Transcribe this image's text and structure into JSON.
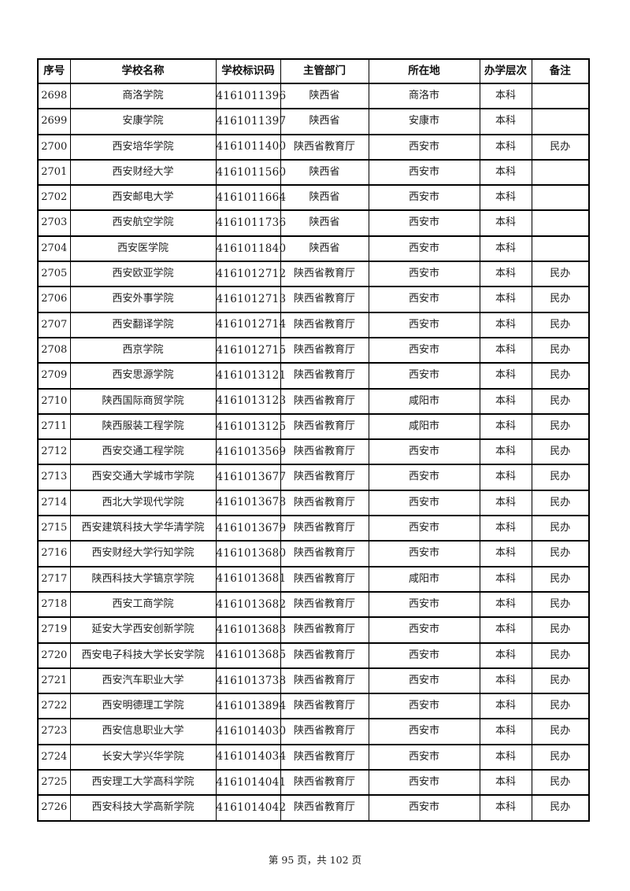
{
  "page": {
    "background": "#ffffff",
    "text_color": "#1c1c1c",
    "border_color": "#000000"
  },
  "table": {
    "columns": [
      {
        "key": "no",
        "label": "序号"
      },
      {
        "key": "name",
        "label": "学校名称"
      },
      {
        "key": "code",
        "label": "学校标识码"
      },
      {
        "key": "dept",
        "label": "主管部门"
      },
      {
        "key": "city",
        "label": "所在地"
      },
      {
        "key": "level",
        "label": "办学层次"
      },
      {
        "key": "note",
        "label": "备注"
      }
    ],
    "rows": [
      {
        "no": "2698",
        "name": "商洛学院",
        "code": "4161011396",
        "dept": "陕西省",
        "city": "商洛市",
        "level": "本科",
        "note": ""
      },
      {
        "no": "2699",
        "name": "安康学院",
        "code": "4161011397",
        "dept": "陕西省",
        "city": "安康市",
        "level": "本科",
        "note": ""
      },
      {
        "no": "2700",
        "name": "西安培华学院",
        "code": "4161011400",
        "dept": "陕西省教育厅",
        "city": "西安市",
        "level": "本科",
        "note": "民办"
      },
      {
        "no": "2701",
        "name": "西安财经大学",
        "code": "4161011560",
        "dept": "陕西省",
        "city": "西安市",
        "level": "本科",
        "note": ""
      },
      {
        "no": "2702",
        "name": "西安邮电大学",
        "code": "4161011664",
        "dept": "陕西省",
        "city": "西安市",
        "level": "本科",
        "note": ""
      },
      {
        "no": "2703",
        "name": "西安航空学院",
        "code": "4161011736",
        "dept": "陕西省",
        "city": "西安市",
        "level": "本科",
        "note": ""
      },
      {
        "no": "2704",
        "name": "西安医学院",
        "code": "4161011840",
        "dept": "陕西省",
        "city": "西安市",
        "level": "本科",
        "note": ""
      },
      {
        "no": "2705",
        "name": "西安欧亚学院",
        "code": "4161012712",
        "dept": "陕西省教育厅",
        "city": "西安市",
        "level": "本科",
        "note": "民办"
      },
      {
        "no": "2706",
        "name": "西安外事学院",
        "code": "4161012713",
        "dept": "陕西省教育厅",
        "city": "西安市",
        "level": "本科",
        "note": "民办"
      },
      {
        "no": "2707",
        "name": "西安翻译学院",
        "code": "4161012714",
        "dept": "陕西省教育厅",
        "city": "西安市",
        "level": "本科",
        "note": "民办"
      },
      {
        "no": "2708",
        "name": "西京学院",
        "code": "4161012715",
        "dept": "陕西省教育厅",
        "city": "西安市",
        "level": "本科",
        "note": "民办"
      },
      {
        "no": "2709",
        "name": "西安思源学院",
        "code": "4161013121",
        "dept": "陕西省教育厅",
        "city": "西安市",
        "level": "本科",
        "note": "民办"
      },
      {
        "no": "2710",
        "name": "陕西国际商贸学院",
        "code": "4161013123",
        "dept": "陕西省教育厅",
        "city": "咸阳市",
        "level": "本科",
        "note": "民办"
      },
      {
        "no": "2711",
        "name": "陕西服装工程学院",
        "code": "4161013125",
        "dept": "陕西省教育厅",
        "city": "咸阳市",
        "level": "本科",
        "note": "民办"
      },
      {
        "no": "2712",
        "name": "西安交通工程学院",
        "code": "4161013569",
        "dept": "陕西省教育厅",
        "city": "西安市",
        "level": "本科",
        "note": "民办"
      },
      {
        "no": "2713",
        "name": "西安交通大学城市学院",
        "code": "4161013677",
        "dept": "陕西省教育厅",
        "city": "西安市",
        "level": "本科",
        "note": "民办"
      },
      {
        "no": "2714",
        "name": "西北大学现代学院",
        "code": "4161013678",
        "dept": "陕西省教育厅",
        "city": "西安市",
        "level": "本科",
        "note": "民办"
      },
      {
        "no": "2715",
        "name": "西安建筑科技大学华清学院",
        "code": "4161013679",
        "dept": "陕西省教育厅",
        "city": "西安市",
        "level": "本科",
        "note": "民办"
      },
      {
        "no": "2716",
        "name": "西安财经大学行知学院",
        "code": "4161013680",
        "dept": "陕西省教育厅",
        "city": "西安市",
        "level": "本科",
        "note": "民办"
      },
      {
        "no": "2717",
        "name": "陕西科技大学镐京学院",
        "code": "4161013681",
        "dept": "陕西省教育厅",
        "city": "咸阳市",
        "level": "本科",
        "note": "民办"
      },
      {
        "no": "2718",
        "name": "西安工商学院",
        "code": "4161013682",
        "dept": "陕西省教育厅",
        "city": "西安市",
        "level": "本科",
        "note": "民办"
      },
      {
        "no": "2719",
        "name": "延安大学西安创新学院",
        "code": "4161013683",
        "dept": "陕西省教育厅",
        "city": "西安市",
        "level": "本科",
        "note": "民办"
      },
      {
        "no": "2720",
        "name": "西安电子科技大学长安学院",
        "code": "4161013685",
        "dept": "陕西省教育厅",
        "city": "西安市",
        "level": "本科",
        "note": "民办"
      },
      {
        "no": "2721",
        "name": "西安汽车职业大学",
        "code": "4161013738",
        "dept": "陕西省教育厅",
        "city": "西安市",
        "level": "本科",
        "note": "民办"
      },
      {
        "no": "2722",
        "name": "西安明德理工学院",
        "code": "4161013894",
        "dept": "陕西省教育厅",
        "city": "西安市",
        "level": "本科",
        "note": "民办"
      },
      {
        "no": "2723",
        "name": "西安信息职业大学",
        "code": "4161014030",
        "dept": "陕西省教育厅",
        "city": "西安市",
        "level": "本科",
        "note": "民办"
      },
      {
        "no": "2724",
        "name": "长安大学兴华学院",
        "code": "4161014034",
        "dept": "陕西省教育厅",
        "city": "西安市",
        "level": "本科",
        "note": "民办"
      },
      {
        "no": "2725",
        "name": "西安理工大学高科学院",
        "code": "4161014041",
        "dept": "陕西省教育厅",
        "city": "西安市",
        "level": "本科",
        "note": "民办"
      },
      {
        "no": "2726",
        "name": "西安科技大学高新学院",
        "code": "4161014042",
        "dept": "陕西省教育厅",
        "city": "西安市",
        "level": "本科",
        "note": "民办"
      }
    ]
  },
  "footer": {
    "page_indicator": "第 95 页，共 102 页"
  }
}
